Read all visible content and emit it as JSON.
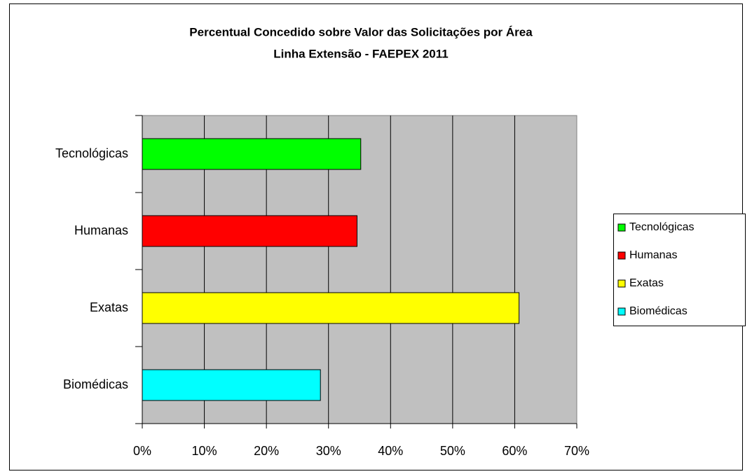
{
  "chart_data": {
    "type": "barh",
    "title": "Percentual Concedido sobre Valor das Solicitações por Área",
    "subtitle": "Linha Extensão - FAEPEX 2011",
    "categories": [
      "Tecnológicas",
      "Humanas",
      "Exatas",
      "Biomédicas"
    ],
    "values": [
      35.2,
      34.6,
      60.7,
      28.7
    ],
    "colors": [
      "#00ff00",
      "#ff0000",
      "#ffff00",
      "#00ffff"
    ],
    "xlim": [
      0,
      70
    ],
    "xticks": [
      {
        "value": 0,
        "label": "0%"
      },
      {
        "value": 10,
        "label": "10%"
      },
      {
        "value": 20,
        "label": "20%"
      },
      {
        "value": 30,
        "label": "30%"
      },
      {
        "value": 40,
        "label": "40%"
      },
      {
        "value": 50,
        "label": "50%"
      },
      {
        "value": 60,
        "label": "60%"
      },
      {
        "value": 70,
        "label": "70%"
      }
    ],
    "grid": true,
    "legend": "right"
  }
}
